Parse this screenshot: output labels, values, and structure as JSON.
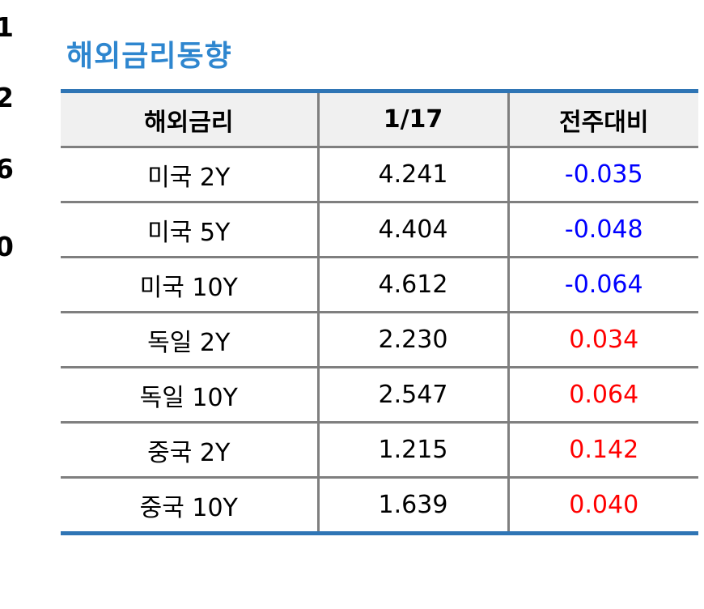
{
  "edge_digits": [
    "1",
    "2",
    "6",
    "0"
  ],
  "title": "해외금리동향",
  "table": {
    "headers": [
      "해외금리",
      "1/17",
      "전주대비"
    ],
    "rows": [
      {
        "name": "미국 2Y",
        "value": "4.241",
        "change": "-0.035",
        "direction": "down"
      },
      {
        "name": "미국 5Y",
        "value": "4.404",
        "change": "-0.048",
        "direction": "down"
      },
      {
        "name": "미국 10Y",
        "value": "4.612",
        "change": "-0.064",
        "direction": "down"
      },
      {
        "name": "독일 2Y",
        "value": "2.230",
        "change": "0.034",
        "direction": "up"
      },
      {
        "name": "독일 10Y",
        "value": "2.547",
        "change": "0.064",
        "direction": "up"
      },
      {
        "name": "중국 2Y",
        "value": "1.215",
        "change": "0.142",
        "direction": "up"
      },
      {
        "name": "중국 10Y",
        "value": "1.639",
        "change": "0.040",
        "direction": "up"
      }
    ]
  },
  "colors": {
    "title": "#2e86cf",
    "table_rule": "#2f75b5",
    "grid": "#7f7f7f",
    "header_bg": "#f0f0f0",
    "negative": "#0000ff",
    "positive": "#ff0000"
  }
}
